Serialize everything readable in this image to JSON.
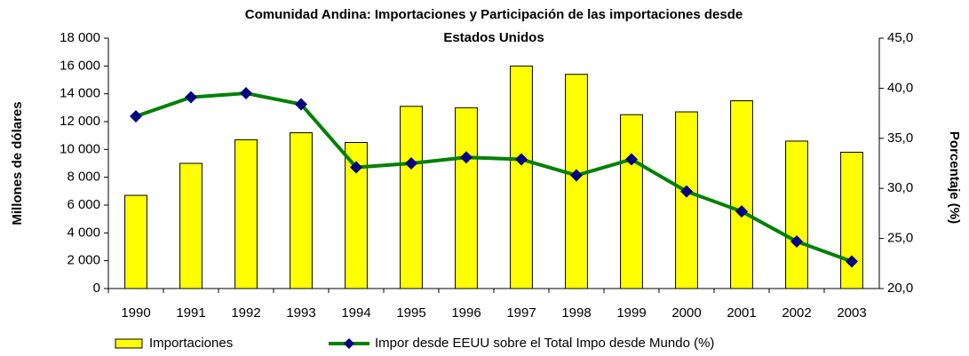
{
  "chart_data": {
    "type": "bar_line",
    "title": "Comunidad Andina: Importaciones y Participación de las importaciones desde",
    "subtitle": "Estados Unidos",
    "y_label": "Millones de dólares",
    "y2_label": "Porcentaje (%)",
    "categories": [
      "1990",
      "1991",
      "1992",
      "1993",
      "1994",
      "1995",
      "1996",
      "1997",
      "1998",
      "1999",
      "2000",
      "2001",
      "2002",
      "2003"
    ],
    "series": [
      {
        "name": "Importaciones",
        "type": "bar",
        "color": "#ffff00",
        "values": [
          6700,
          9000,
          10700,
          11200,
          10500,
          13100,
          13000,
          16000,
          15400,
          12500,
          12700,
          13500,
          10600,
          9800
        ]
      },
      {
        "name": "Impor desde EEUU sobre el Total Impo desde Mundo (%)",
        "type": "line",
        "axis": "y2",
        "color": "#008000",
        "marker_color": "#000080",
        "values": [
          37.2,
          39.1,
          39.5,
          38.4,
          32.1,
          32.5,
          33.1,
          32.9,
          31.3,
          32.9,
          29.7,
          27.7,
          24.7,
          22.7
        ]
      }
    ],
    "ylim": [
      0,
      18000
    ],
    "yticks": [
      0,
      {
        "value": 2000,
        "label": "2 000"
      },
      {
        "value": 4000,
        "label": "4 000"
      },
      {
        "value": 6000,
        "label": "6 000"
      },
      {
        "value": 8000,
        "label": "8 000"
      },
      {
        "value": 10000,
        "label": "10 000"
      },
      {
        "value": 12000,
        "label": "12 000"
      },
      {
        "value": 14000,
        "label": "14 000"
      },
      {
        "value": 16000,
        "label": "16 000"
      },
      {
        "value": 18000,
        "label": "18 000"
      }
    ],
    "y2lim": [
      20,
      45
    ],
    "y2ticks": [
      {
        "value": 20,
        "label": "20,0"
      },
      {
        "value": 25,
        "label": "25,0"
      },
      {
        "value": 30,
        "label": "30,0"
      },
      {
        "value": 35,
        "label": "35,0"
      },
      {
        "value": 40,
        "label": "40,0"
      },
      {
        "value": 45,
        "label": "45,0"
      }
    ]
  }
}
